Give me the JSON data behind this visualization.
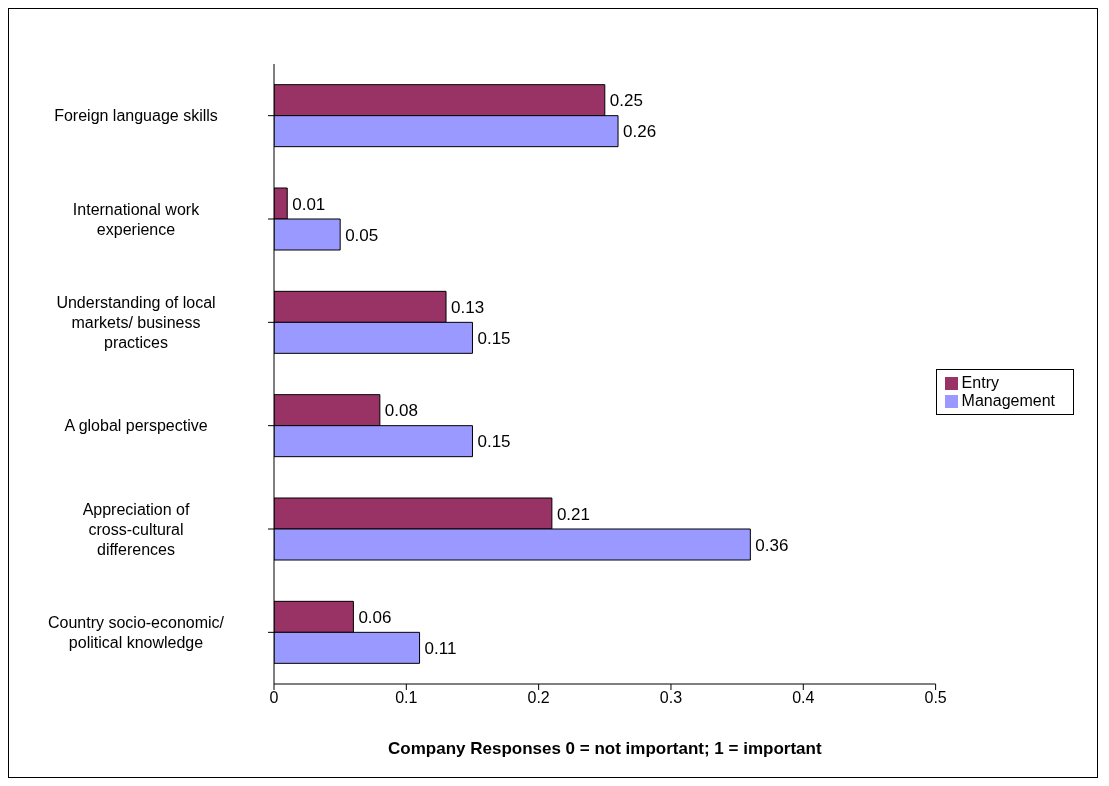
{
  "chart_data": {
    "type": "bar",
    "orientation": "horizontal",
    "xlabel": "Company Responses 0 = not important; 1 = important",
    "categories": [
      "Foreign language skills",
      "International work experience",
      "Understanding of local markets/ business practices",
      "A global perspective",
      "Appreciation of cross-cultural differences",
      "Country socio-economic/ political knowledge"
    ],
    "series": [
      {
        "name": "Entry",
        "color": "#993366",
        "values": [
          0.25,
          0.01,
          0.13,
          0.08,
          0.21,
          0.06
        ]
      },
      {
        "name": "Management",
        "color": "#9999ff",
        "values": [
          0.26,
          0.05,
          0.15,
          0.15,
          0.36,
          0.11
        ]
      }
    ],
    "xlim": [
      0,
      0.5
    ],
    "xticks": [
      0,
      0.1,
      0.2,
      0.3,
      0.4,
      0.5
    ],
    "grid": false,
    "legend": "right",
    "data_labels": true
  }
}
